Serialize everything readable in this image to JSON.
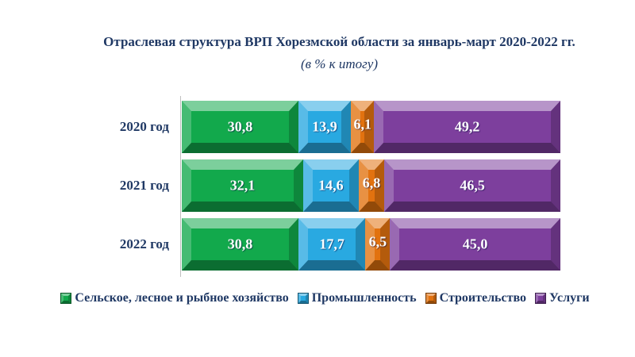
{
  "header": {
    "title": "Отраслевая структура ВРП Хорезмской области за январь-март 2020-2022 гг.",
    "subtitle": "(в % к итогу)"
  },
  "chart_data": {
    "type": "bar",
    "orientation": "horizontal",
    "stacked": true,
    "unit": "%",
    "title": "Отраслевая структура ВРП Хорезмской области за январь-март 2020-2022 гг.",
    "subtitle": "(в % к итогу)",
    "categories": [
      "2020 год",
      "2021 год",
      "2022 год"
    ],
    "series": [
      {
        "name": "Сельское, лесное и рыбное хозяйство",
        "color": "#12A94C",
        "values": [
          30.8,
          32.1,
          30.8
        ],
        "labels": [
          "30,8",
          "32,1",
          "30,8"
        ]
      },
      {
        "name": "Промышленность",
        "color": "#29A9E1",
        "values": [
          13.9,
          14.6,
          17.7
        ],
        "labels": [
          "13,9",
          "14,6",
          "17,7"
        ]
      },
      {
        "name": "Строительство",
        "color": "#E2720F",
        "values": [
          6.1,
          6.8,
          6.5
        ],
        "labels": [
          "6,1",
          "6,8",
          "6,5"
        ]
      },
      {
        "name": "Услуги",
        "color": "#7D3F9D",
        "values": [
          49.2,
          46.5,
          45.0
        ],
        "labels": [
          "49,2",
          "46,5",
          "45,0"
        ]
      }
    ],
    "xlim": [
      0,
      100
    ],
    "grid": false,
    "legend_position": "bottom",
    "text_color": "#1F3864",
    "axis_line_color": "#BFBFBF",
    "value_label_color": "#FFFFFF"
  }
}
